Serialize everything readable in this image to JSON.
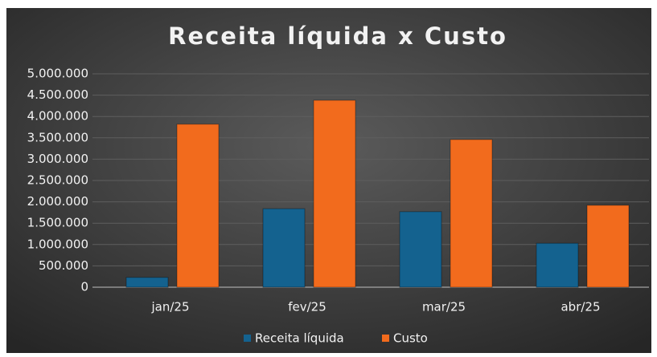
{
  "chart_data": {
    "type": "bar",
    "title": "Receita líquida x Custo",
    "categories": [
      "jan/25",
      "fev/25",
      "mar/25",
      "abr/25"
    ],
    "series": [
      {
        "name": "Receita líquida",
        "color": "#14628f",
        "values": [
          230000,
          1840000,
          1770000,
          1030000
        ]
      },
      {
        "name": "Custo",
        "color": "#f26b1d",
        "values": [
          3820000,
          4380000,
          3460000,
          1920000
        ]
      }
    ],
    "ylim": [
      0,
      5000000
    ],
    "yticks": [
      0,
      {
        "value": 500000,
        "label": "500.000"
      },
      {
        "value": 1000000,
        "label": "1.000.000"
      },
      {
        "value": 1500000,
        "label": "1.500.000"
      },
      {
        "value": 2000000,
        "label": "2.000.000"
      },
      {
        "value": 2500000,
        "label": "2.500.000"
      },
      {
        "value": 3000000,
        "label": "3.000.000"
      },
      {
        "value": 3500000,
        "label": "3.500.000"
      },
      {
        "value": 4000000,
        "label": "4.000.000"
      },
      {
        "value": 4500000,
        "label": "4.500.000"
      },
      {
        "value": 5000000,
        "label": "5.000.000"
      }
    ],
    "grid": true,
    "legend": "bottom"
  }
}
